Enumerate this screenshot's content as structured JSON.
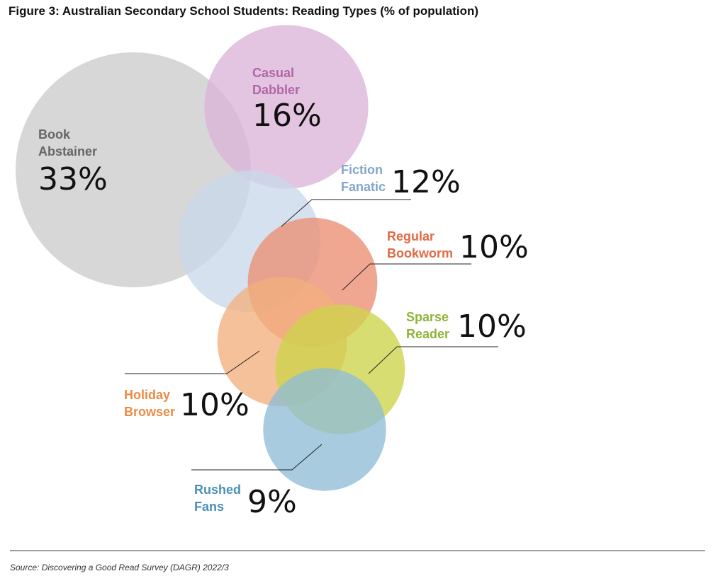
{
  "title": "Figure 3: Australian Secondary School Students: Reading Types (% of population)",
  "source": "Source: Discovering a Good Read Survey (DAGR) 2022/3",
  "chart_data": {
    "type": "bubble",
    "title": "Figure 3: Australian Secondary School Students: Reading Types (% of population)",
    "unit": "%",
    "series": [
      {
        "key": "book-abstainer",
        "name_lines": [
          "Book",
          "Abstainer"
        ],
        "value": 33,
        "label": "33%",
        "color": "#cccccc",
        "label_color": "#666666"
      },
      {
        "key": "casual-dabbler",
        "name_lines": [
          "Casual",
          "Dabbler"
        ],
        "value": 16,
        "label": "16%",
        "color": "#dbb5d8",
        "label_color": "#b066a8"
      },
      {
        "key": "fiction-fanatic",
        "name_lines": [
          "Fiction",
          "Fanatic"
        ],
        "value": 12,
        "label": "12%",
        "color": "#c9d8ea",
        "label_color": "#86a5cc"
      },
      {
        "key": "regular-bookworm",
        "name_lines": [
          "Regular",
          "Bookworm"
        ],
        "value": 10,
        "label": "10%",
        "color": "#ec8e73",
        "label_color": "#e06a45"
      },
      {
        "key": "holiday-browser",
        "name_lines": [
          "Holiday",
          "Browser"
        ],
        "value": 10,
        "label": "10%",
        "color": "#f2b07d",
        "label_color": "#ec8b45"
      },
      {
        "key": "sparse-reader",
        "name_lines": [
          "Sparse",
          "Reader"
        ],
        "value": 10,
        "label": "10%",
        "color": "#cdd34a",
        "label_color": "#8fb33a"
      },
      {
        "key": "rushed-fans",
        "name_lines": [
          "Rushed",
          "Fans"
        ],
        "value": 9,
        "label": "9%",
        "color": "#8fbdd6",
        "label_color": "#4a90b8"
      }
    ]
  }
}
